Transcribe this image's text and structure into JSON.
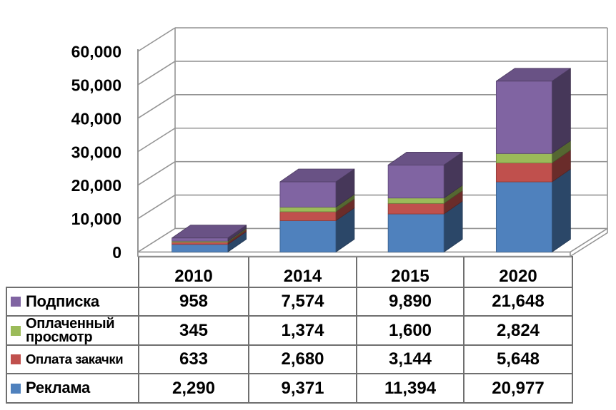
{
  "chart_data": {
    "type": "bar",
    "subtype": "3d-stacked-column",
    "title": "",
    "xlabel": "",
    "ylabel": "",
    "categories": [
      "2010",
      "2014",
      "2015",
      "2020"
    ],
    "series": [
      {
        "name": "Подписка",
        "color": "#8064A2",
        "values": [
          958,
          7574,
          9890,
          21648
        ],
        "values_display": [
          "958",
          "7,574",
          "9,890",
          "21,648"
        ]
      },
      {
        "name": "Оплаченный просмотр",
        "color": "#9BBB59",
        "values": [
          345,
          1374,
          1600,
          2824
        ],
        "values_display": [
          "345",
          "1,374",
          "1,600",
          "2,824"
        ]
      },
      {
        "name": "Оплата закачки",
        "color": "#C0504D",
        "values": [
          633,
          2680,
          3144,
          5648
        ],
        "values_display": [
          "633",
          "2,680",
          "3,144",
          "5,648"
        ]
      },
      {
        "name": "Реклама",
        "color": "#4F81BD",
        "values": [
          2290,
          9371,
          11394,
          20977
        ],
        "values_display": [
          "2,290",
          "9,371",
          "11,394",
          "20,977"
        ]
      }
    ],
    "stack_order_bottom_to_top": [
      "Реклама",
      "Оплата закачки",
      "Оплаченный просмотр",
      "Подписка"
    ],
    "y_axis": {
      "min": 0,
      "max": 60000,
      "step": 10000,
      "tick_labels": [
        "0",
        "10,000",
        "20,000",
        "30,000",
        "40,000",
        "50,000",
        "60,000"
      ]
    },
    "grid": true,
    "legend_position": "table-left"
  },
  "colors": {
    "gridline": "#949494",
    "table_border": "#6f6f6f",
    "text": "#000000",
    "background": "#ffffff"
  }
}
